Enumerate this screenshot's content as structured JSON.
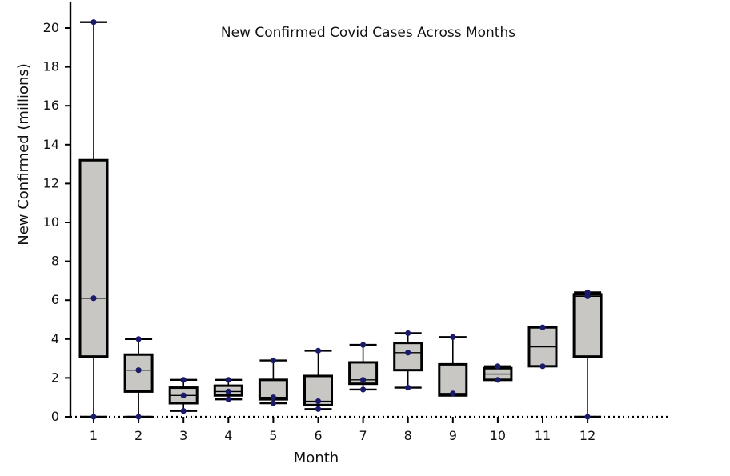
{
  "chart_data": {
    "type": "box",
    "title": "New Confirmed Covid Cases Across Months",
    "xlabel": "Month",
    "ylabel": "New Confirmed (millions)",
    "ylim": [
      0,
      21
    ],
    "yticks": [
      "0",
      "2",
      "4",
      "6",
      "8",
      "10",
      "12",
      "14",
      "16",
      "18",
      "20"
    ],
    "categories": [
      "1",
      "2",
      "3",
      "4",
      "5",
      "6",
      "7",
      "8",
      "9",
      "10",
      "11",
      "12"
    ],
    "boxes": [
      {
        "min": 0.0,
        "q1": 3.1,
        "median": 6.1,
        "q3": 13.2,
        "max": 20.3,
        "points": [
          0.0,
          6.1,
          20.3
        ]
      },
      {
        "min": 0.0,
        "q1": 1.3,
        "median": 2.4,
        "q3": 3.2,
        "max": 4.0,
        "points": [
          0.0,
          2.4,
          4.0
        ]
      },
      {
        "min": 0.3,
        "q1": 0.7,
        "median": 1.1,
        "q3": 1.5,
        "max": 1.9,
        "points": [
          0.3,
          1.1,
          1.9
        ]
      },
      {
        "min": 0.9,
        "q1": 1.1,
        "median": 1.3,
        "q3": 1.6,
        "max": 1.9,
        "points": [
          0.9,
          1.3,
          1.9
        ]
      },
      {
        "min": 0.7,
        "q1": 0.9,
        "median": 1.0,
        "q3": 1.9,
        "max": 2.9,
        "points": [
          0.7,
          1.0,
          2.9
        ]
      },
      {
        "min": 0.4,
        "q1": 0.6,
        "median": 0.8,
        "q3": 2.1,
        "max": 3.4,
        "points": [
          0.4,
          0.8,
          3.4
        ]
      },
      {
        "min": 1.4,
        "q1": 1.7,
        "median": 1.9,
        "q3": 2.8,
        "max": 3.7,
        "points": [
          1.4,
          1.9,
          3.7
        ]
      },
      {
        "min": 1.5,
        "q1": 2.4,
        "median": 3.3,
        "q3": 3.8,
        "max": 4.3,
        "points": [
          1.5,
          3.3,
          4.3
        ]
      },
      {
        "min": 1.1,
        "q1": 1.1,
        "median": 1.2,
        "q3": 2.7,
        "max": 4.1,
        "points": [
          1.2,
          4.1
        ]
      },
      {
        "min": 1.9,
        "q1": 1.9,
        "median": 2.2,
        "q3": 2.5,
        "max": 2.6,
        "points": [
          1.9,
          2.6
        ]
      },
      {
        "min": 2.6,
        "q1": 2.6,
        "median": 3.6,
        "q3": 4.6,
        "max": 4.6,
        "points": [
          2.6,
          4.6
        ]
      },
      {
        "min": 0.0,
        "q1": 3.1,
        "median": 6.2,
        "q3": 6.3,
        "max": 6.4,
        "points": [
          0.0,
          6.2,
          6.4
        ]
      }
    ]
  }
}
